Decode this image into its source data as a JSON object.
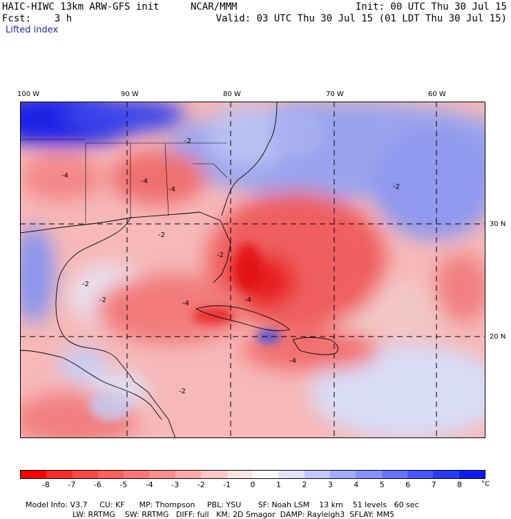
{
  "header": {
    "model": "HAIC-HIWC 13km ARW-GFS init",
    "org": "NCAR/MMM",
    "init": "Init: 00 UTC Thu 30 Jul 15",
    "fcst": "Fcst:    3 h",
    "valid": "Valid: 03 UTC Thu 30 Jul 15 (01 LDT Thu 30 Jul 15)",
    "field": "Lifted index"
  },
  "map": {
    "lon_labels": [
      "100 W",
      "90 W",
      "80 W",
      "70 W",
      "60 W"
    ],
    "lat_labels": [
      "30 N",
      "20 N"
    ],
    "contour_labels": [
      "-2",
      "-2",
      "-4",
      "-4",
      "-2",
      "-2",
      "-2",
      "-4",
      "-2",
      "-4",
      "-4",
      "-2",
      "-4"
    ],
    "colors": {
      "strong_unstable": "#e8181c",
      "unstable": "#f36a6a",
      "weak_unstable": "#f7b3b3",
      "neutral": "#ffffff",
      "weak_stable": "#c6ccf2",
      "stable": "#6f7fe8",
      "strong_stable": "#1b22e6"
    }
  },
  "colorbar": {
    "labels": [
      "-8",
      "-7",
      "-6",
      "-5",
      "-4",
      "-3",
      "-2",
      "-1",
      "0",
      "1",
      "2",
      "3",
      "4",
      "5",
      "6",
      "7",
      "8"
    ],
    "unit": "°C",
    "colors": [
      "#ff0000",
      "#ff2a2a",
      "#ff4646",
      "#ff5e5e",
      "#ff7676",
      "#ff8e8e",
      "#ffa8a8",
      "#ffc4c4",
      "#ffe4e4",
      "#ffffff",
      "#dfe3ff",
      "#c2c8ff",
      "#a3acff",
      "#8591ff",
      "#6673ff",
      "#4756ff",
      "#283aff",
      "#0c1aff"
    ]
  },
  "footer": {
    "line1": [
      "Model Info: V3.7",
      "CU: KF",
      "MP: Thompson",
      "PBL: YSU",
      "SF: Noah LSM",
      "13 km",
      "51 levels",
      "60 sec"
    ],
    "line2": [
      "LW: RRTMG",
      "SW: RRTMG",
      "DIFF: full",
      "KM: 2D Smagor",
      "DAMP: Rayleigh3",
      "SFLAY: MM5"
    ]
  }
}
